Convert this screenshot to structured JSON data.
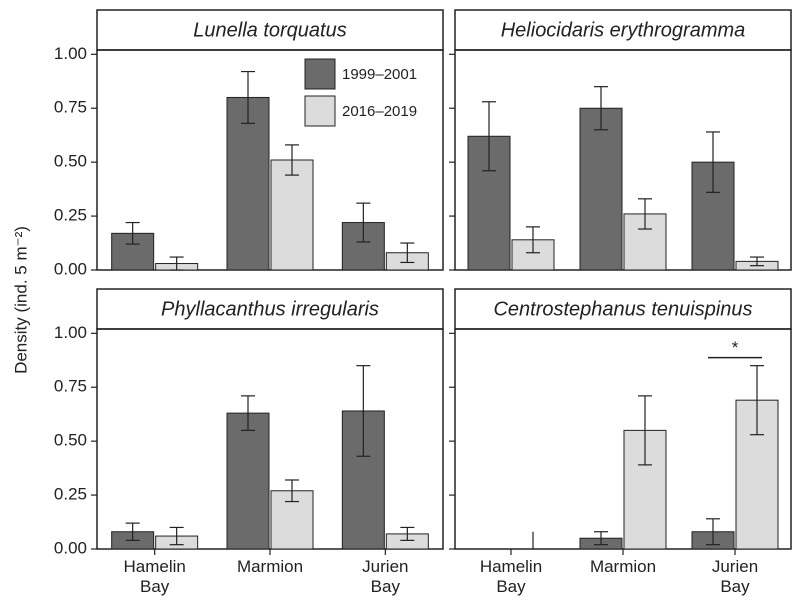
{
  "ylabel": "Density (ind. 5 m⁻²)",
  "chart_data": [
    {
      "type": "bar",
      "title": "Lunella torquatus",
      "series": [
        {
          "name": "1999–2001",
          "color": "#6b6b6b",
          "values": [
            0.17,
            0.8,
            0.22
          ],
          "errors": [
            0.05,
            0.12,
            0.09
          ]
        },
        {
          "name": "2016–2019",
          "color": "#dcdcdc",
          "values": [
            0.03,
            0.51,
            0.08
          ],
          "errors": [
            0.03,
            0.07,
            0.045
          ]
        }
      ],
      "ylim": [
        0,
        1.02
      ],
      "yticks": [
        {
          "value": 0,
          "label": "0.00"
        },
        {
          "value": 0.25,
          "label": "0.25"
        },
        {
          "value": 0.5,
          "label": "0.50"
        },
        {
          "value": 0.75,
          "label": "0.75"
        },
        {
          "value": 1,
          "label": "1.00"
        }
      ],
      "grid": false
    },
    {
      "type": "bar",
      "title": "Heliocidaris erythrogramma",
      "series": [
        {
          "color": "#6b6b6b",
          "values": [
            0.62,
            0.75,
            0.5
          ],
          "errors": [
            0.16,
            0.1,
            0.14
          ]
        },
        {
          "color": "#dcdcdc",
          "values": [
            0.14,
            0.26,
            0.04
          ],
          "errors": [
            0.06,
            0.07,
            0.02
          ]
        }
      ],
      "ylim": [
        0,
        1.02
      ],
      "yticks": [
        0,
        0.25,
        0.5,
        0.75,
        1
      ],
      "grid": false
    },
    {
      "type": "bar",
      "title": "Phyllacanthus irregularis",
      "categories": [
        "Hamelin Bay",
        "Marmion",
        "Jurien Bay"
      ],
      "series": [
        {
          "color": "#6b6b6b",
          "values": [
            0.08,
            0.63,
            0.64
          ],
          "errors": [
            0.04,
            0.08,
            0.21
          ]
        },
        {
          "color": "#dcdcdc",
          "values": [
            0.06,
            0.27,
            0.07
          ],
          "errors": [
            0.04,
            0.05,
            0.03
          ]
        }
      ],
      "ylim": [
        0,
        1.02
      ],
      "yticks": [
        {
          "value": 0,
          "label": "0.00"
        },
        {
          "value": 0.25,
          "label": "0.25"
        },
        {
          "value": 0.5,
          "label": "0.50"
        },
        {
          "value": 0.75,
          "label": "0.75"
        },
        {
          "value": 1,
          "label": "1.00"
        }
      ],
      "grid": false
    },
    {
      "type": "bar",
      "title": "Centrostephanus tenuispinus",
      "categories": [
        "Hamelin Bay",
        "Marmion",
        "Jurien Bay"
      ],
      "series": [
        {
          "color": "#6b6b6b",
          "values": [
            0,
            0.05,
            0.08
          ],
          "errors": [
            0,
            0.03,
            0.06
          ]
        },
        {
          "color": "#dcdcdc",
          "values": [
            0,
            0.55,
            0.69
          ],
          "errors": [
            0.08,
            0.16,
            0.16
          ]
        }
      ],
      "ylim": [
        0,
        1.02
      ],
      "yticks": [
        0,
        0.25,
        0.5,
        0.75,
        1
      ],
      "grid": false,
      "annotation": "*"
    }
  ]
}
